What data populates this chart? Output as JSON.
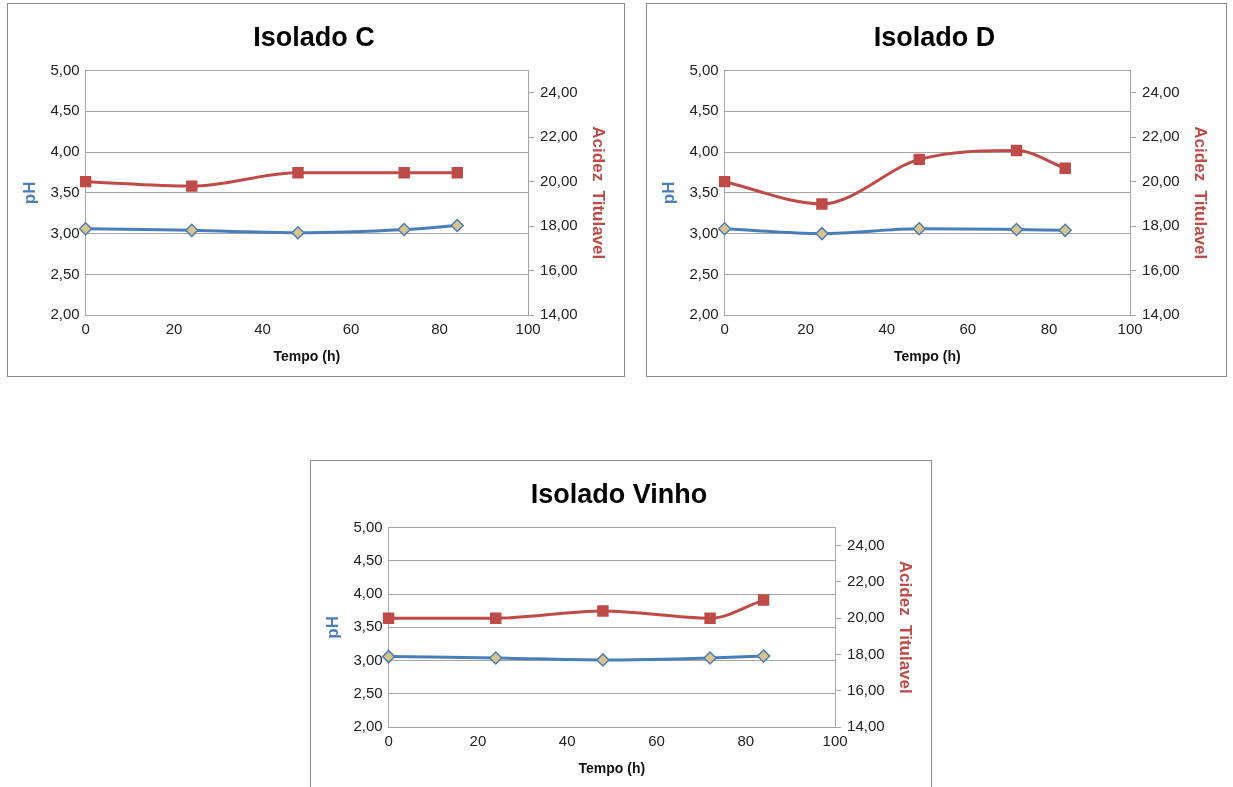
{
  "chart_data": [
    {
      "type": "line",
      "title": "Isolado C",
      "xlabel": "Tempo (h)",
      "ylabel": "pH",
      "y2label": "Acidez  Titulavel",
      "x": [
        0,
        24,
        48,
        72,
        84
      ],
      "xlim": [
        0,
        100
      ],
      "xticks": [
        0,
        20,
        40,
        60,
        80,
        100
      ],
      "ylim": [
        2,
        5
      ],
      "yticks": [
        {
          "value": 2,
          "label": "2,00"
        },
        {
          "value": 2.5,
          "label": "2,50"
        },
        {
          "value": 3,
          "label": "3,00"
        },
        {
          "value": 3.5,
          "label": "3,50"
        },
        {
          "value": 4,
          "label": "4,00"
        },
        {
          "value": 4.5,
          "label": "4,50"
        },
        {
          "value": 5,
          "label": "5,00"
        }
      ],
      "y2lim": [
        14,
        25
      ],
      "y2ticks": [
        {
          "value": 14,
          "label": "14,00"
        },
        {
          "value": 16,
          "label": "16,00"
        },
        {
          "value": 18,
          "label": "18,00"
        },
        {
          "value": 20,
          "label": "20,00"
        },
        {
          "value": 22,
          "label": "22,00"
        },
        {
          "value": 24,
          "label": "24,00"
        }
      ],
      "grid": "y",
      "legend": false,
      "series": [
        {
          "color": "#4a7ebb",
          "marker": "diamond",
          "values": [
            3.06,
            3.04,
            3.01,
            3.05,
            3.1
          ]
        },
        {
          "color": "#be4b48",
          "marker": "square",
          "axis": "y2",
          "values": [
            20.0,
            19.8,
            20.4,
            20.4,
            20.4
          ]
        }
      ]
    },
    {
      "type": "line",
      "title": "Isolado D",
      "xlabel": "Tempo (h)",
      "ylabel": "pH",
      "y2label": "Acidez  Titulavel",
      "x": [
        0,
        24,
        48,
        72,
        84
      ],
      "xlim": [
        0,
        100
      ],
      "xticks": [
        0,
        20,
        40,
        60,
        80,
        100
      ],
      "ylim": [
        2,
        5
      ],
      "yticks": [
        {
          "value": 2,
          "label": "2,00"
        },
        {
          "value": 2.5,
          "label": "2,50"
        },
        {
          "value": 3,
          "label": "3,00"
        },
        {
          "value": 3.5,
          "label": "3,50"
        },
        {
          "value": 4,
          "label": "4,00"
        },
        {
          "value": 4.5,
          "label": "4,50"
        },
        {
          "value": 5,
          "label": "5,00"
        }
      ],
      "y2lim": [
        14,
        25
      ],
      "y2ticks": [
        {
          "value": 14,
          "label": "14,00"
        },
        {
          "value": 16,
          "label": "16,00"
        },
        {
          "value": 18,
          "label": "18,00"
        },
        {
          "value": 20,
          "label": "20,00"
        },
        {
          "value": 22,
          "label": "22,00"
        },
        {
          "value": 24,
          "label": "24,00"
        }
      ],
      "grid": "y",
      "legend": false,
      "series": [
        {
          "color": "#4a7ebb",
          "marker": "diamond",
          "values": [
            3.06,
            3.0,
            3.06,
            3.05,
            3.04
          ]
        },
        {
          "color": "#be4b48",
          "marker": "square",
          "axis": "y2",
          "values": [
            20.0,
            19.0,
            21.0,
            21.4,
            20.6
          ]
        }
      ]
    },
    {
      "type": "line",
      "title": "Isolado Vinho",
      "xlabel": "Tempo (h)",
      "ylabel": "pH",
      "y2label": "Acidez  Titulavel",
      "x": [
        0,
        24,
        48,
        72,
        84
      ],
      "xlim": [
        0,
        100
      ],
      "xticks": [
        0,
        20,
        40,
        60,
        80,
        100
      ],
      "ylim": [
        2,
        5
      ],
      "yticks": [
        {
          "value": 2,
          "label": "2,00"
        },
        {
          "value": 2.5,
          "label": "2,50"
        },
        {
          "value": 3,
          "label": "3,00"
        },
        {
          "value": 3.5,
          "label": "3,50"
        },
        {
          "value": 4,
          "label": "4,00"
        },
        {
          "value": 4.5,
          "label": "4,50"
        },
        {
          "value": 5,
          "label": "5,00"
        }
      ],
      "y2lim": [
        14,
        25
      ],
      "y2ticks": [
        {
          "value": 14,
          "label": "14,00"
        },
        {
          "value": 16,
          "label": "16,00"
        },
        {
          "value": 18,
          "label": "18,00"
        },
        {
          "value": 20,
          "label": "20,00"
        },
        {
          "value": 22,
          "label": "22,00"
        },
        {
          "value": 24,
          "label": "24,00"
        }
      ],
      "grid": "y",
      "legend": false,
      "series": [
        {
          "color": "#4a7ebb",
          "marker": "diamond",
          "values": [
            3.06,
            3.04,
            3.01,
            3.04,
            3.07
          ]
        },
        {
          "color": "#be4b48",
          "marker": "square",
          "axis": "y2",
          "values": [
            20.0,
            20.0,
            20.4,
            20.0,
            21.0
          ]
        }
      ]
    }
  ]
}
